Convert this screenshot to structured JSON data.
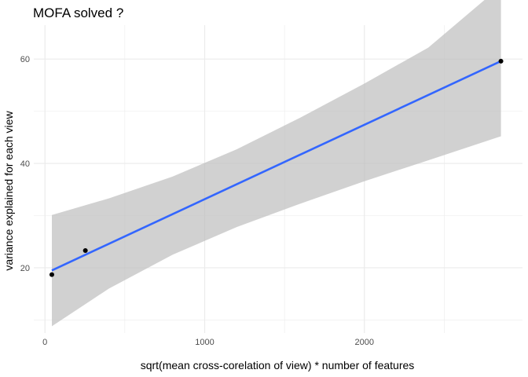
{
  "chart_data": {
    "type": "scatter",
    "title": "MOFA solved ?",
    "xlabel": "sqrt(mean cross-corelation of view) * number of features",
    "ylabel": "variance explained for each view",
    "xlim": [
      -70,
      2990
    ],
    "ylim": [
      7.5,
      66.5
    ],
    "x_ticks": [
      0,
      1000,
      2000
    ],
    "x_tick_labels": [
      "0",
      "1000",
      "2000"
    ],
    "x_minor_ticks": [
      500,
      1500,
      2500
    ],
    "y_ticks": [
      20,
      40,
      60
    ],
    "y_tick_labels": [
      "20",
      "40",
      "60"
    ],
    "y_minor_ticks": [
      10,
      30,
      50
    ],
    "grid": true,
    "points": [
      {
        "x": 43,
        "y": 18.7
      },
      {
        "x": 253,
        "y": 23.3
      },
      {
        "x": 2855,
        "y": 59.6
      }
    ],
    "fit_line": {
      "method": "linear",
      "x": [
        43,
        2855
      ],
      "y": [
        19.5,
        59.6
      ]
    },
    "confidence_band": {
      "x": [
        43,
        400,
        800,
        1200,
        1600,
        2000,
        2400,
        2855
      ],
      "lower": [
        8.8,
        16.0,
        22.5,
        27.8,
        32.3,
        36.6,
        40.6,
        45.2
      ],
      "upper": [
        30.1,
        33.3,
        37.5,
        42.7,
        48.8,
        55.3,
        62.2,
        74.0
      ]
    },
    "colors": {
      "line": "#3366FF",
      "band": "#BEBEBE",
      "points": "#000000",
      "grid": "#EBEBEB"
    }
  }
}
